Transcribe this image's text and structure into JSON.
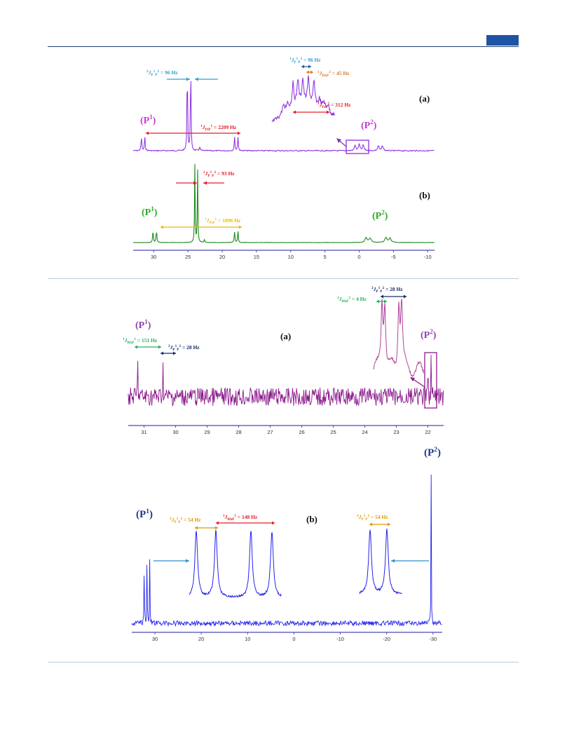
{
  "colors": {
    "header_rule": "#1e3e73",
    "header_tab": "#1f54a4",
    "separator": "#b9cde3",
    "axis": "#4a4ab8",
    "fig1_a": "#8a2be2",
    "fig1_b": "#1f8a1f",
    "fig2_a": "#8b1a8b",
    "fig2_b": "#2323ee",
    "cyan": "#2f9fd6",
    "orange": "#e07a2a",
    "red": "#e0202a",
    "yellow": "#f2b700",
    "green": "#22b05a",
    "navy": "#1a2a6c",
    "gold": "#d99a00",
    "magenta": "#c53cd6",
    "green_label": "#2ea82e",
    "purple_label": "#8e44ad",
    "blue_label": "#1a3a8c"
  },
  "chart_data": [
    {
      "type": "line",
      "panel": "figure1",
      "xlim": [
        33,
        -11
      ],
      "ticks": [
        "30",
        "25",
        "20",
        "15",
        "10",
        "5",
        "0",
        "-5",
        "-10"
      ],
      "spectra": [
        {
          "tag": "(a)",
          "peak_labels": [
            "(P1)",
            "(P2)"
          ],
          "peaks_ppm": [
            31.8,
            31.3,
            25.1,
            24.6,
            18.2,
            17.7,
            0.5,
            0.0,
            -0.5,
            -3.0,
            -3.5
          ],
          "annotations": [
            {
              "sup": "2",
              "j": "J",
              "sub": "P",
              "sup2": "1",
              "sub2": "P",
              "sup3": "2",
              "value": " = 96 Hz",
              "color": "cyan"
            },
            {
              "sup": "1",
              "j": "J",
              "sub": "P",
              "sup2": "1",
              "sub2": "P",
              "sup3": "2",
              "value": " = 96 Hz",
              "color": "cyan"
            },
            {
              "sup": "1",
              "j": "J",
              "sub": "RhP",
              "sup3": "2",
              "value": " = 45 Hz",
              "color": "orange"
            },
            {
              "sup": "1",
              "j": "J",
              "sub": "PtP",
              "sup3": "2",
              "value": " = 312 Hz",
              "color": "red"
            },
            {
              "sup": "1",
              "j": "J",
              "sub": "PtP",
              "sup3": "1",
              "value": " = 2209 Hz",
              "color": "red"
            }
          ]
        },
        {
          "tag": "(b)",
          "peak_labels": [
            "(P1)",
            "(P2)"
          ],
          "peaks_ppm": [
            30.1,
            29.6,
            24.0,
            23.6,
            18.2,
            17.7,
            -1.2,
            -4.0
          ],
          "annotations": [
            {
              "sup": "2",
              "j": "J",
              "sub": "P",
              "sup2": "1",
              "sub2": "P",
              "sup3": "2",
              "value": " = 93 Hz",
              "color": "red"
            },
            {
              "sup": "1",
              "j": "J",
              "sub": "PtP",
              "sup3": "1",
              "value": " = 1896 Hz",
              "color": "yellow"
            }
          ]
        }
      ]
    },
    {
      "type": "line",
      "panel": "figure2a",
      "xlim": [
        31.5,
        21.5
      ],
      "ticks": [
        "31",
        "30",
        "29",
        "28",
        "27",
        "26",
        "25",
        "24",
        "23",
        "22"
      ],
      "tag": "(a)",
      "peak_labels": [
        "(P1)",
        "(P2)"
      ],
      "peaks_ppm": [
        31.2,
        30.4,
        22.0,
        21.9
      ],
      "annotations": [
        {
          "sup": "1",
          "j": "J",
          "sub": "RhP",
          "sup3": "1",
          "value": " = 151 Hz",
          "color": "green"
        },
        {
          "sup": "2",
          "j": "J",
          "sub": "P",
          "sup2": "1",
          "sub2": "P",
          "sup3": "2",
          "value": " = 28 Hz",
          "color": "navy"
        },
        {
          "sup": "2",
          "j": "J",
          "sub": "P",
          "sup2": "1",
          "sub2": "P",
          "sup3": "2",
          "value": " = 28 Hz",
          "color": "navy"
        },
        {
          "sup": "1",
          "j": "J",
          "sub": "RhP",
          "sup3": "2",
          "value": " = 4 Hz",
          "color": "green"
        }
      ]
    },
    {
      "type": "line",
      "panel": "figure2b",
      "xlim": [
        35,
        -32
      ],
      "ticks": [
        "30",
        "20",
        "10",
        "0",
        "-10",
        "-20",
        "-30"
      ],
      "tag": "(b)",
      "peak_labels": [
        "(P1)",
        "(P2)"
      ],
      "peaks_ppm": [
        32.2,
        31.6,
        31.0,
        -29.6
      ],
      "annotations": [
        {
          "sup": "2",
          "j": "J",
          "sub": "P",
          "sup2": "1",
          "sub2": "P",
          "sup3": "2",
          "value": " = 54 Hz",
          "color": "gold"
        },
        {
          "sup": "1",
          "j": "J",
          "sub": "RhP",
          "sup3": "1",
          "value": " = 148 Hz",
          "color": "red"
        },
        {
          "sup": "2",
          "j": "J",
          "sub": "P",
          "sup2": "1",
          "sub2": "P",
          "sup3": "2",
          "value": " = 54 Hz",
          "color": "gold"
        }
      ]
    }
  ]
}
